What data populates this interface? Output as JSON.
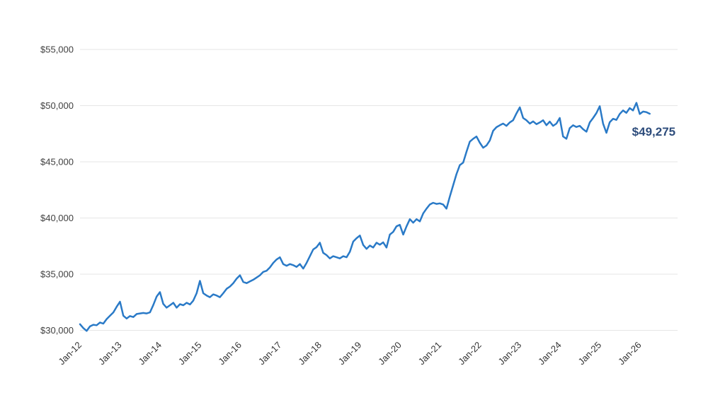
{
  "chart_data": {
    "type": "line",
    "title": "",
    "xlabel": "",
    "ylabel": "",
    "x_unit": "month",
    "x_start": "Jan-12",
    "x_end": "Apr-26",
    "x_tick_labels": [
      "Jan-12",
      "Jan-13",
      "Jan-14",
      "Jan-15",
      "Jan-16",
      "Jan-17",
      "Jan-18",
      "Jan-19",
      "Jan-20",
      "Jan-21",
      "Jan-22",
      "Jan-23",
      "Jan-24",
      "Jan-25",
      "Jan-26"
    ],
    "y_tick_labels": [
      "$30,000",
      "$35,000",
      "$40,000",
      "$45,000",
      "$50,000",
      "$55,000"
    ],
    "y_tick_values": [
      30000,
      35000,
      40000,
      45000,
      50000,
      55000
    ],
    "ylim": [
      30000,
      55000
    ],
    "grid": true,
    "legend": false,
    "last_value_label": "$49,275",
    "last_value": 49275,
    "colors": {
      "line": "#2a7ac7",
      "last_value_label": "#2e4d7c",
      "y_tick_text": "#404040",
      "x_tick_text": "#333333",
      "gridline": "#e6e6e6",
      "background": "#ffffff"
    },
    "series": [
      {
        "name": "value",
        "monthly_values": [
          30550,
          30200,
          29950,
          30350,
          30500,
          30450,
          30700,
          30600,
          31000,
          31300,
          31600,
          32100,
          32550,
          31300,
          31050,
          31270,
          31180,
          31450,
          31500,
          31550,
          31500,
          31600,
          32250,
          33000,
          33400,
          32350,
          32020,
          32230,
          32450,
          32020,
          32330,
          32230,
          32450,
          32300,
          32650,
          33300,
          34400,
          33300,
          33100,
          32950,
          33200,
          33100,
          32950,
          33300,
          33700,
          33900,
          34200,
          34600,
          34900,
          34300,
          34200,
          34350,
          34500,
          34700,
          34900,
          35200,
          35300,
          35600,
          36000,
          36300,
          36500,
          35900,
          35750,
          35900,
          35800,
          35650,
          35900,
          35500,
          36000,
          36600,
          37200,
          37400,
          37800,
          36900,
          36700,
          36400,
          36600,
          36500,
          36400,
          36600,
          36500,
          37000,
          37900,
          38200,
          38440,
          37600,
          37250,
          37550,
          37370,
          37800,
          37620,
          37830,
          37370,
          38520,
          38760,
          39260,
          39390,
          38520,
          39260,
          39890,
          39580,
          39890,
          39700,
          40400,
          40830,
          41200,
          41350,
          41250,
          41300,
          41200,
          40830,
          41900,
          42900,
          43900,
          44700,
          44930,
          45900,
          46800,
          47050,
          47250,
          46700,
          46250,
          46450,
          46900,
          47760,
          48080,
          48250,
          48400,
          48200,
          48500,
          48700,
          49300,
          49850,
          48900,
          48700,
          48400,
          48600,
          48350,
          48500,
          48700,
          48260,
          48580,
          48200,
          48400,
          48900,
          47260,
          47050,
          48000,
          48250,
          48100,
          48200,
          47900,
          47680,
          48500,
          48900,
          49340,
          49950,
          48400,
          47580,
          48520,
          48830,
          48730,
          49260,
          49570,
          49360,
          49780,
          49570,
          50250,
          49260,
          49470,
          49420,
          49275
        ]
      }
    ]
  }
}
